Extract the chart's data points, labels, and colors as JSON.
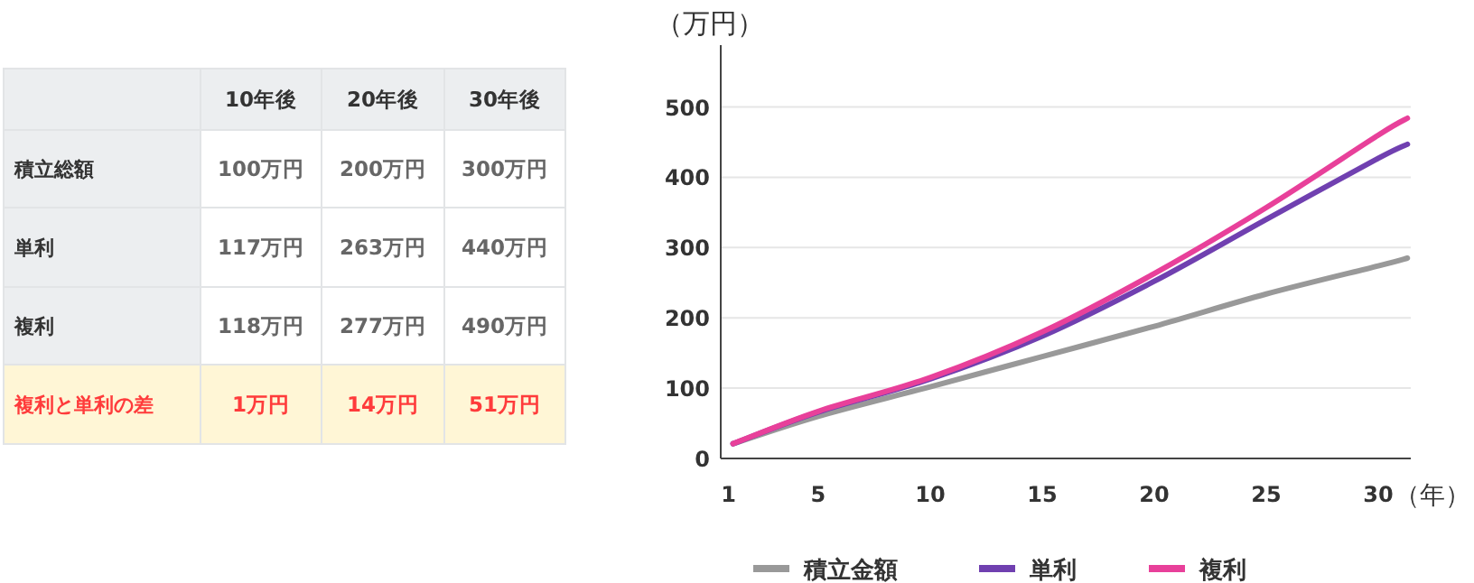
{
  "chart_data": [
    {
      "type": "other",
      "categories": [
        null,
        "10年後",
        "20年後",
        "30年後"
      ],
      "y_categories": [
        "積立総額",
        "単利",
        "複利",
        "複利と単利の差"
      ],
      "cell_labels": [
        [
          "100万円",
          "200万円",
          "300万円"
        ],
        [
          "117万円",
          "263万円",
          "440万円"
        ],
        [
          "118万円",
          "277万円",
          "490万円"
        ],
        [
          "1万円",
          "14万円",
          "51万円"
        ]
      ]
    },
    {
      "type": "line",
      "ylabel": "（万円）",
      "xlabel": "（年）",
      "xlim": [
        0.65,
        31.45
      ],
      "ylim": [
        0,
        588
      ],
      "xticks": [
        1,
        5,
        10,
        15,
        20,
        25,
        30
      ],
      "yticks": [
        0,
        100,
        200,
        300,
        400,
        500
      ],
      "grid": "y",
      "legend": "bottom",
      "series": [
        {
          "name": "積立金額",
          "color": "#999999",
          "x": [
            1.2,
            5,
            10,
            15,
            20,
            25,
            30,
            31.3
          ],
          "values": [
            21,
            60,
            102,
            145,
            188,
            234,
            274,
            285
          ]
        },
        {
          "name": "単利",
          "color": "#7040b0",
          "x": [
            1.2,
            5,
            10,
            15,
            20,
            25,
            30,
            31.3
          ],
          "values": [
            21,
            66,
            113,
            174,
            252,
            340,
            427,
            447
          ]
        },
        {
          "name": "複利",
          "color": "#e8409a",
          "x": [
            1.2,
            5,
            10,
            15,
            20,
            25,
            30,
            31.3
          ],
          "values": [
            21,
            67,
            115,
            180,
            263,
            357,
            460,
            484
          ]
        }
      ]
    }
  ]
}
